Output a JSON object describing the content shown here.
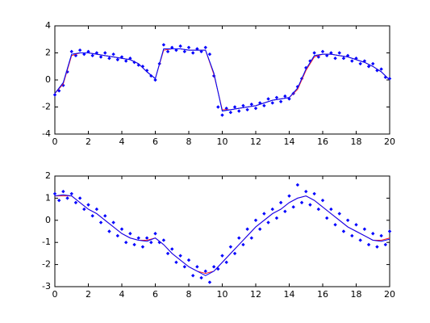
{
  "chart_data": [
    {
      "type": "scatter",
      "xlim": [
        0,
        20
      ],
      "ylim": [
        -4,
        4
      ],
      "xticks": [
        0,
        2,
        4,
        6,
        8,
        10,
        12,
        14,
        16,
        18,
        20
      ],
      "yticks": [
        -4,
        -2,
        0,
        2,
        4
      ],
      "series": [
        {
          "type": "scatter",
          "color": "#0000ff",
          "x": [
            0,
            0.25,
            0.5,
            0.75,
            1,
            1.25,
            1.5,
            1.75,
            2,
            2.25,
            2.5,
            2.75,
            3,
            3.25,
            3.5,
            3.75,
            4,
            4.25,
            4.5,
            4.75,
            5,
            5.25,
            5.5,
            5.75,
            6,
            6.25,
            6.5,
            6.75,
            7,
            7.25,
            7.5,
            7.75,
            8,
            8.25,
            8.5,
            8.75,
            9,
            9.25,
            9.5,
            9.75,
            10,
            10.25,
            10.5,
            10.75,
            11,
            11.25,
            11.5,
            11.75,
            12,
            12.25,
            12.5,
            12.75,
            13,
            13.25,
            13.5,
            13.75,
            14,
            14.25,
            14.5,
            14.75,
            15,
            15.25,
            15.5,
            15.75,
            16,
            16.25,
            16.5,
            16.75,
            17,
            17.25,
            17.5,
            17.75,
            18,
            18.25,
            18.5,
            18.75,
            19,
            19.25,
            19.5,
            19.75,
            20
          ],
          "values": [
            -1.1,
            -0.8,
            -0.4,
            0.6,
            2.1,
            1.8,
            2.2,
            1.9,
            2.1,
            1.8,
            2.0,
            1.7,
            2.0,
            1.6,
            1.9,
            1.5,
            1.7,
            1.4,
            1.6,
            1.3,
            1.1,
            1.0,
            0.7,
            0.3,
            0.0,
            1.2,
            2.6,
            2.1,
            2.4,
            2.2,
            2.5,
            2.1,
            2.4,
            2.0,
            2.3,
            2.1,
            2.4,
            1.9,
            0.3,
            -2.0,
            -2.6,
            -2.1,
            -2.4,
            -2.0,
            -2.3,
            -1.9,
            -2.2,
            -1.8,
            -2.1,
            -1.7,
            -1.9,
            -1.4,
            -1.7,
            -1.3,
            -1.6,
            -1.2,
            -1.4,
            -1.0,
            -0.5,
            0.1,
            0.9,
            1.4,
            2.0,
            1.7,
            2.1,
            1.8,
            2.0,
            1.6,
            2.0,
            1.6,
            1.8,
            1.4,
            1.6,
            1.2,
            1.4,
            1.0,
            1.2,
            0.7,
            0.8,
            0.2,
            0.1
          ]
        },
        {
          "type": "line",
          "color": "#00c8ff",
          "x": [
            0,
            0.5,
            1,
            1.5,
            2,
            2.5,
            3,
            3.5,
            4,
            4.5,
            5,
            5.5,
            6,
            6.5,
            7,
            7.5,
            8,
            8.5,
            9,
            9.5,
            10,
            10.5,
            11,
            11.5,
            12,
            12.5,
            13,
            13.5,
            14,
            14.5,
            15,
            15.5,
            16,
            16.5,
            17,
            17.5,
            18,
            18.5,
            19,
            19.5,
            20
          ],
          "values": [
            -1.0,
            -0.2,
            1.9,
            2.0,
            2.0,
            1.9,
            1.8,
            1.7,
            1.6,
            1.5,
            1.2,
            0.6,
            0.1,
            2.3,
            2.3,
            2.3,
            2.2,
            2.2,
            2.2,
            0.5,
            -2.3,
            -2.2,
            -2.1,
            -2.0,
            -1.9,
            -1.7,
            -1.5,
            -1.4,
            -1.3,
            -0.6,
            0.8,
            1.8,
            1.9,
            1.9,
            1.8,
            1.7,
            1.5,
            1.3,
            1.0,
            0.6,
            0.0
          ]
        },
        {
          "type": "line",
          "color": "#ff2020",
          "x": [
            0,
            0.5,
            1,
            1.5,
            2,
            2.5,
            3,
            3.5,
            4,
            4.5,
            5,
            5.5,
            6,
            6.5,
            7,
            7.5,
            8,
            8.5,
            9,
            9.5,
            10,
            10.5,
            11,
            11.5,
            12,
            12.5,
            13,
            13.5,
            14,
            14.5,
            15,
            15.5,
            16,
            16.5,
            17,
            17.5,
            18,
            18.5,
            19,
            19.5,
            20
          ],
          "values": [
            -1.0,
            -0.3,
            1.8,
            2.0,
            2.0,
            1.9,
            1.8,
            1.7,
            1.6,
            1.5,
            1.2,
            0.6,
            0.1,
            2.2,
            2.3,
            2.3,
            2.2,
            2.2,
            2.2,
            0.4,
            -2.2,
            -2.2,
            -2.1,
            -2.0,
            -1.9,
            -1.7,
            -1.5,
            -1.4,
            -1.3,
            -0.7,
            0.7,
            1.7,
            1.9,
            1.9,
            1.8,
            1.7,
            1.5,
            1.3,
            1.0,
            0.6,
            0.0
          ]
        },
        {
          "type": "line",
          "color": "#0000ff",
          "x": [
            0,
            0.5,
            1,
            1.5,
            2,
            2.5,
            3,
            3.5,
            4,
            4.5,
            5,
            5.5,
            6,
            6.5,
            7,
            7.5,
            8,
            8.5,
            9,
            9.5,
            10,
            10.5,
            11,
            11.5,
            12,
            12.5,
            13,
            13.5,
            14,
            14.5,
            15,
            15.5,
            16,
            16.5,
            17,
            17.5,
            18,
            18.5,
            19,
            19.5,
            20
          ],
          "values": [
            -1.0,
            -0.2,
            1.9,
            2.0,
            2.0,
            1.9,
            1.8,
            1.7,
            1.6,
            1.5,
            1.2,
            0.6,
            0.1,
            2.3,
            2.3,
            2.3,
            2.2,
            2.2,
            2.2,
            0.5,
            -2.3,
            -2.2,
            -2.1,
            -2.0,
            -1.9,
            -1.7,
            -1.5,
            -1.4,
            -1.3,
            -0.6,
            0.8,
            1.8,
            1.9,
            1.9,
            1.8,
            1.7,
            1.5,
            1.3,
            1.0,
            0.6,
            0.0
          ]
        }
      ]
    },
    {
      "type": "scatter",
      "xlim": [
        0,
        20
      ],
      "ylim": [
        -3,
        2
      ],
      "xticks": [
        0,
        2,
        4,
        6,
        8,
        10,
        12,
        14,
        16,
        18,
        20
      ],
      "yticks": [
        -3,
        -2,
        -1,
        0,
        1,
        2
      ],
      "series": [
        {
          "type": "scatter",
          "color": "#0000ff",
          "x": [
            0,
            0.25,
            0.5,
            0.75,
            1,
            1.25,
            1.5,
            1.75,
            2,
            2.25,
            2.5,
            2.75,
            3,
            3.25,
            3.5,
            3.75,
            4,
            4.25,
            4.5,
            4.75,
            5,
            5.25,
            5.5,
            5.75,
            6,
            6.25,
            6.5,
            6.75,
            7,
            7.25,
            7.5,
            7.75,
            8,
            8.25,
            8.5,
            8.75,
            9,
            9.25,
            9.5,
            9.75,
            10,
            10.25,
            10.5,
            10.75,
            11,
            11.25,
            11.5,
            11.75,
            12,
            12.25,
            12.5,
            12.75,
            13,
            13.25,
            13.5,
            13.75,
            14,
            14.25,
            14.5,
            14.75,
            15,
            15.25,
            15.5,
            15.75,
            16,
            16.25,
            16.5,
            16.75,
            17,
            17.25,
            17.5,
            17.75,
            18,
            18.25,
            18.5,
            18.75,
            19,
            19.25,
            19.5,
            19.75,
            20
          ],
          "values": [
            1.2,
            0.9,
            1.3,
            1.0,
            1.2,
            0.8,
            1.0,
            0.5,
            0.7,
            0.2,
            0.5,
            -0.1,
            0.2,
            -0.5,
            -0.1,
            -0.7,
            -0.4,
            -1.0,
            -0.6,
            -1.1,
            -0.8,
            -1.2,
            -0.8,
            -1.0,
            -0.6,
            -1.0,
            -0.9,
            -1.5,
            -1.3,
            -1.9,
            -1.6,
            -2.1,
            -1.8,
            -2.5,
            -2.1,
            -2.6,
            -2.3,
            -2.8,
            -2.1,
            -2.2,
            -1.6,
            -1.9,
            -1.2,
            -1.5,
            -0.8,
            -1.1,
            -0.4,
            -0.8,
            0.0,
            -0.4,
            0.3,
            -0.1,
            0.5,
            0.1,
            0.8,
            0.4,
            1.1,
            0.6,
            1.6,
            0.8,
            1.3,
            0.7,
            1.2,
            0.5,
            0.9,
            0.1,
            0.5,
            -0.2,
            0.3,
            -0.5,
            0.0,
            -0.7,
            -0.2,
            -0.9,
            -0.4,
            -1.1,
            -0.6,
            -1.2,
            -0.7,
            -1.1,
            -0.5
          ]
        },
        {
          "type": "line",
          "color": "#ff2020",
          "x": [
            0,
            0.5,
            1,
            1.5,
            2,
            2.5,
            3,
            3.5,
            4,
            4.5,
            5,
            5.5,
            6,
            6.5,
            7,
            7.5,
            8,
            8.5,
            9,
            9.5,
            10,
            10.5,
            11,
            11.5,
            12,
            12.5,
            13,
            13.5,
            14,
            14.5,
            15,
            15.5,
            16,
            16.5,
            17,
            17.5,
            18,
            18.5,
            19,
            19.5,
            20
          ],
          "values": [
            1.1,
            1.1,
            1.1,
            0.8,
            0.5,
            0.3,
            0.0,
            -0.3,
            -0.6,
            -0.8,
            -0.9,
            -0.9,
            -0.8,
            -1.1,
            -1.5,
            -1.8,
            -2.1,
            -2.3,
            -2.4,
            -2.3,
            -1.9,
            -1.5,
            -1.1,
            -0.7,
            -0.3,
            0.0,
            0.3,
            0.5,
            0.8,
            1.0,
            1.1,
            0.9,
            0.6,
            0.3,
            0.0,
            -0.3,
            -0.5,
            -0.7,
            -0.9,
            -0.9,
            -0.8
          ]
        },
        {
          "type": "line",
          "color": "#0000ff",
          "x": [
            0,
            0.5,
            1,
            1.5,
            2,
            2.5,
            3,
            3.5,
            4,
            4.5,
            5,
            5.5,
            6,
            6.5,
            7,
            7.5,
            8,
            8.5,
            9,
            9.5,
            10,
            10.5,
            11,
            11.5,
            12,
            12.5,
            13,
            13.5,
            14,
            14.5,
            15,
            15.5,
            16,
            16.5,
            17,
            17.5,
            18,
            18.5,
            19,
            19.5,
            20
          ],
          "values": [
            1.1,
            1.15,
            1.1,
            0.8,
            0.5,
            0.3,
            0.0,
            -0.3,
            -0.6,
            -0.8,
            -0.9,
            -0.95,
            -0.8,
            -1.1,
            -1.5,
            -1.8,
            -2.1,
            -2.3,
            -2.5,
            -2.3,
            -1.9,
            -1.5,
            -1.1,
            -0.7,
            -0.3,
            0.0,
            0.3,
            0.5,
            0.8,
            1.0,
            1.1,
            0.9,
            0.6,
            0.3,
            0.0,
            -0.3,
            -0.5,
            -0.7,
            -0.9,
            -0.95,
            -0.85
          ]
        }
      ]
    }
  ]
}
